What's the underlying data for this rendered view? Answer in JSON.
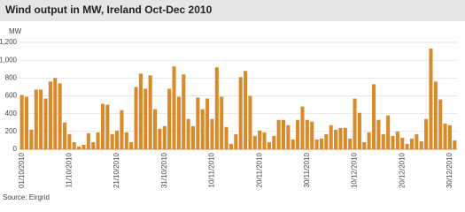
{
  "chart_data": {
    "type": "bar",
    "title": "Wind output in MW, Ireland Oct-Dec 2010",
    "y_label": "MW",
    "source": "Source: Eirgrid",
    "categories": [
      "01/10/2010",
      null,
      null,
      null,
      null,
      null,
      null,
      null,
      null,
      null,
      "11/10/2010",
      null,
      null,
      null,
      null,
      null,
      null,
      null,
      null,
      null,
      "21/10/2010",
      null,
      null,
      null,
      null,
      null,
      null,
      null,
      null,
      null,
      "31/10/2010",
      null,
      null,
      null,
      null,
      null,
      null,
      null,
      null,
      null,
      "10/11/2010",
      null,
      null,
      null,
      null,
      null,
      null,
      null,
      null,
      null,
      "20/11/2010",
      null,
      null,
      null,
      null,
      null,
      null,
      null,
      null,
      null,
      "30/11/2010",
      null,
      null,
      null,
      null,
      null,
      null,
      null,
      null,
      null,
      "10/12/2010",
      null,
      null,
      null,
      null,
      null,
      null,
      null,
      null,
      null,
      "20/12/2010",
      null,
      null,
      null,
      null,
      null,
      null,
      null,
      null,
      null,
      "30/12/2010",
      null
    ],
    "values": [
      610,
      590,
      220,
      670,
      670,
      570,
      760,
      800,
      740,
      300,
      170,
      80,
      30,
      50,
      180,
      80,
      190,
      510,
      500,
      170,
      210,
      440,
      190,
      80,
      700,
      850,
      680,
      830,
      450,
      230,
      260,
      680,
      930,
      590,
      840,
      340,
      260,
      580,
      450,
      570,
      340,
      920,
      590,
      250,
      60,
      170,
      810,
      880,
      600,
      150,
      210,
      190,
      80,
      150,
      330,
      330,
      270,
      110,
      330,
      480,
      330,
      310,
      110,
      120,
      170,
      270,
      220,
      240,
      240,
      120,
      570,
      410,
      80,
      190,
      730,
      330,
      170,
      380,
      150,
      200,
      130,
      60,
      120,
      170,
      90,
      340,
      1130,
      760,
      560,
      290,
      270,
      100
    ],
    "color": "#d98a2b",
    "ylim": [
      0,
      1200
    ],
    "yticks": [
      0,
      200,
      400,
      600,
      800,
      {
        "value": 1000,
        "label": "1,000"
      },
      {
        "value": 1200,
        "label": "1,200"
      }
    ],
    "grid": true
  }
}
